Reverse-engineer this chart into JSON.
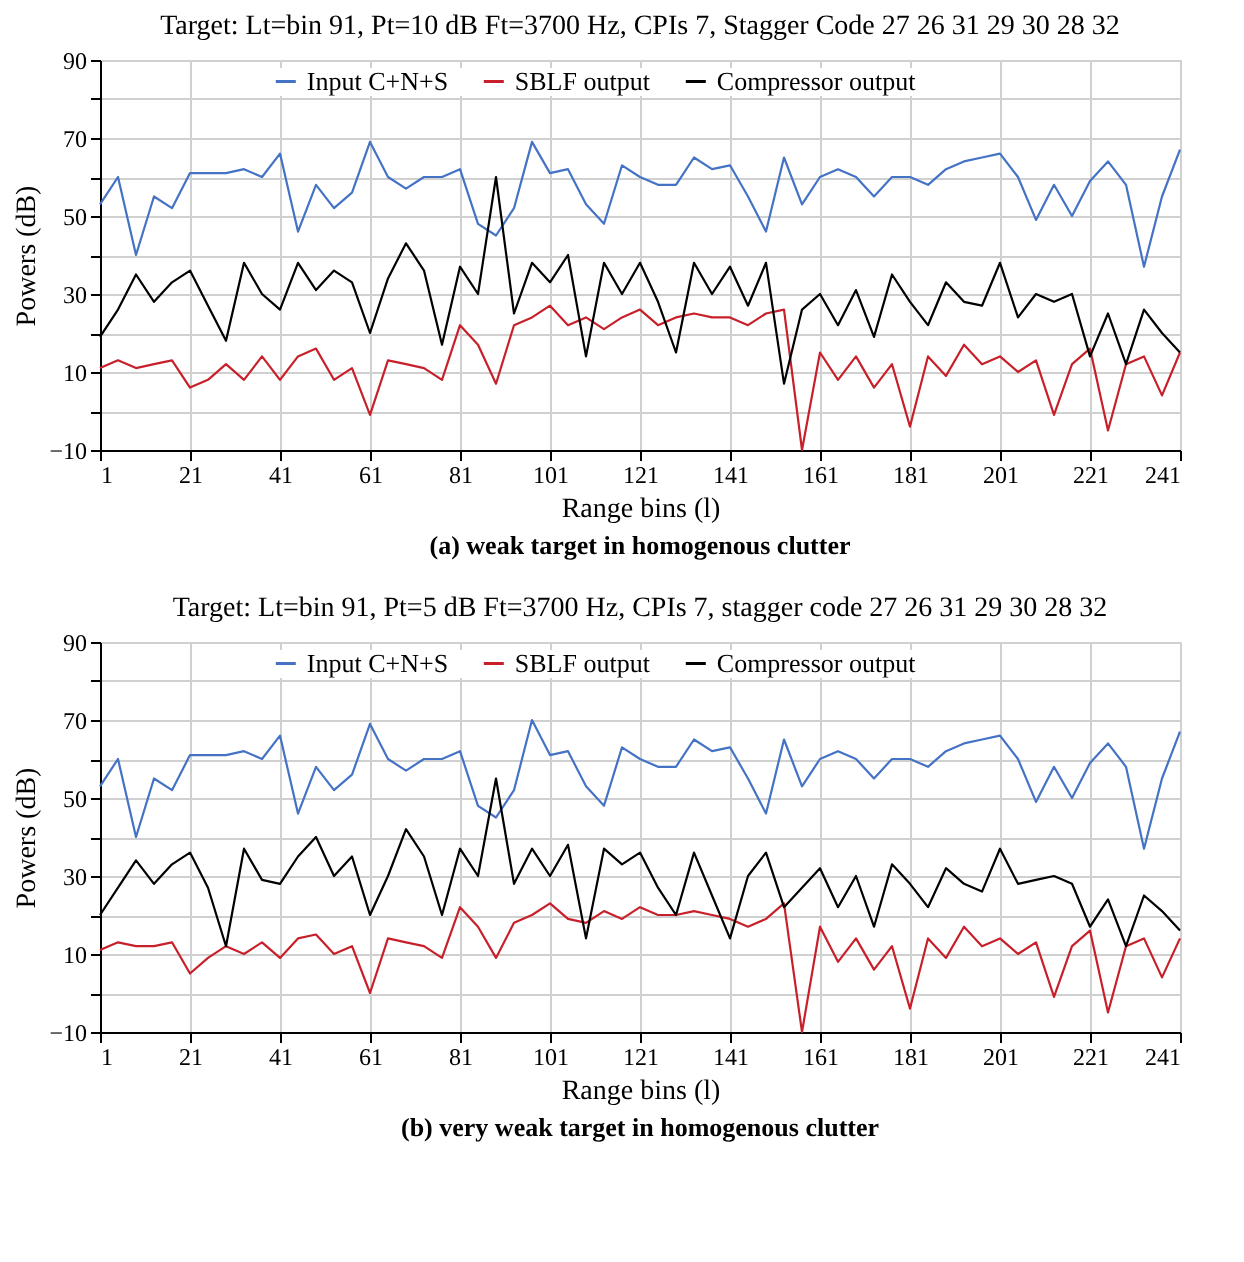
{
  "chart_data": [
    {
      "type": "line",
      "title": "Target: Lt=bin 91, Pt=10 dB Ft=3700 Hz, CPIs 7, Stagger Code 27 26 31 29 30 28 32",
      "xlabel": "Range bins (l)",
      "ylabel": "Powers (dB)",
      "annotations": [
        "(a) weak target in homogenous clutter"
      ],
      "x": [
        1,
        5,
        9,
        13,
        17,
        21,
        25,
        29,
        33,
        37,
        41,
        45,
        49,
        53,
        57,
        61,
        65,
        69,
        73,
        77,
        81,
        85,
        89,
        93,
        97,
        101,
        105,
        109,
        113,
        117,
        121,
        125,
        129,
        133,
        137,
        141,
        145,
        149,
        153,
        157,
        161,
        165,
        169,
        173,
        177,
        181,
        185,
        189,
        193,
        197,
        201,
        205,
        209,
        213,
        217,
        221,
        225,
        229,
        233,
        237,
        241
      ],
      "xlim": [
        1,
        241
      ],
      "xticks": [
        1,
        21,
        41,
        61,
        81,
        101,
        121,
        141,
        161,
        181,
        201,
        221,
        241
      ],
      "ylim": [
        -10,
        90
      ],
      "yticks": [
        -10,
        {
          "value": 0,
          "label": null
        },
        10,
        {
          "value": 20,
          "label": null
        },
        30,
        {
          "value": 40,
          "label": null
        },
        50,
        {
          "value": 60,
          "label": null
        },
        70,
        {
          "value": 80,
          "label": null
        },
        90
      ],
      "grid": true,
      "legend": "top",
      "line_style": "solid",
      "marker": "none",
      "series": [
        {
          "name": "Input C+N+S",
          "color": "#4472c4",
          "values": [
            53,
            60,
            40,
            55,
            52,
            61,
            61,
            61,
            62,
            60,
            66,
            46,
            58,
            52,
            56,
            69,
            60,
            57,
            60,
            60,
            62,
            48,
            45,
            52,
            69,
            61,
            62,
            53,
            48,
            63,
            60,
            58,
            58,
            65,
            62,
            63,
            55,
            46,
            65,
            53,
            60,
            62,
            60,
            55,
            60,
            60,
            58,
            62,
            64,
            65,
            66,
            60,
            49,
            58,
            50,
            59,
            64,
            58,
            37,
            55,
            67
          ]
        },
        {
          "name": "SBLF output",
          "color": "#c8202a",
          "values": [
            11,
            13,
            11,
            12,
            13,
            6,
            8,
            12,
            8,
            14,
            8,
            14,
            16,
            8,
            11,
            -1,
            13,
            12,
            11,
            8,
            22,
            17,
            7,
            22,
            24,
            27,
            22,
            24,
            21,
            24,
            26,
            22,
            24,
            25,
            24,
            24,
            22,
            25,
            26,
            -10,
            15,
            8,
            14,
            6,
            12,
            -4,
            14,
            9,
            17,
            12,
            14,
            10,
            13,
            -1,
            12,
            16,
            -5,
            12,
            14,
            4,
            15
          ]
        },
        {
          "name": "Compressor output",
          "color": "#000000",
          "values": [
            19,
            26,
            35,
            28,
            33,
            36,
            27,
            18,
            38,
            30,
            26,
            38,
            31,
            36,
            33,
            20,
            34,
            43,
            36,
            17,
            37,
            30,
            60,
            25,
            38,
            33,
            40,
            14,
            38,
            30,
            38,
            28,
            15,
            38,
            30,
            37,
            27,
            38,
            7,
            26,
            30,
            22,
            31,
            19,
            35,
            28,
            22,
            33,
            28,
            27,
            38,
            24,
            30,
            28,
            30,
            14,
            25,
            12,
            26,
            20,
            15
          ]
        }
      ]
    },
    {
      "type": "line",
      "title": "Target: Lt=bin 91, Pt=5 dB Ft=3700 Hz, CPIs 7, stagger code 27 26 31 29 30 28 32",
      "xlabel": "Range bins (l)",
      "ylabel": "Powers (dB)",
      "annotations": [
        "(b) very weak target in homogenous clutter"
      ],
      "x": [
        1,
        5,
        9,
        13,
        17,
        21,
        25,
        29,
        33,
        37,
        41,
        45,
        49,
        53,
        57,
        61,
        65,
        69,
        73,
        77,
        81,
        85,
        89,
        93,
        97,
        101,
        105,
        109,
        113,
        117,
        121,
        125,
        129,
        133,
        137,
        141,
        145,
        149,
        153,
        157,
        161,
        165,
        169,
        173,
        177,
        181,
        185,
        189,
        193,
        197,
        201,
        205,
        209,
        213,
        217,
        221,
        225,
        229,
        233,
        237,
        241
      ],
      "xlim": [
        1,
        241
      ],
      "xticks": [
        1,
        21,
        41,
        61,
        81,
        101,
        121,
        141,
        161,
        181,
        201,
        221,
        241
      ],
      "ylim": [
        -10,
        90
      ],
      "yticks": [
        -10,
        {
          "value": 0,
          "label": null
        },
        10,
        {
          "value": 20,
          "label": null
        },
        30,
        {
          "value": 40,
          "label": null
        },
        50,
        {
          "value": 60,
          "label": null
        },
        70,
        {
          "value": 80,
          "label": null
        },
        90
      ],
      "grid": true,
      "legend": "top",
      "line_style": "solid",
      "marker": "none",
      "series": [
        {
          "name": "Input C+N+S",
          "color": "#4472c4",
          "values": [
            53,
            60,
            40,
            55,
            52,
            61,
            61,
            61,
            62,
            60,
            66,
            46,
            58,
            52,
            56,
            69,
            60,
            57,
            60,
            60,
            62,
            48,
            45,
            52,
            70,
            61,
            62,
            53,
            48,
            63,
            60,
            58,
            58,
            65,
            62,
            63,
            55,
            46,
            65,
            53,
            60,
            62,
            60,
            55,
            60,
            60,
            58,
            62,
            64,
            65,
            66,
            60,
            49,
            58,
            50,
            59,
            64,
            58,
            37,
            55,
            67
          ]
        },
        {
          "name": "SBLF output",
          "color": "#c8202a",
          "values": [
            11,
            13,
            12,
            12,
            13,
            5,
            9,
            12,
            10,
            13,
            9,
            14,
            15,
            10,
            12,
            0,
            14,
            13,
            12,
            9,
            22,
            17,
            9,
            18,
            20,
            23,
            19,
            18,
            21,
            19,
            22,
            20,
            20,
            21,
            20,
            19,
            17,
            19,
            23,
            -10,
            17,
            8,
            14,
            6,
            12,
            -4,
            14,
            9,
            17,
            12,
            14,
            10,
            13,
            -1,
            12,
            16,
            -5,
            12,
            14,
            4,
            14
          ]
        },
        {
          "name": "Compressor output",
          "color": "#000000",
          "values": [
            20,
            27,
            34,
            28,
            33,
            36,
            27,
            12,
            37,
            29,
            28,
            35,
            40,
            30,
            35,
            20,
            30,
            42,
            35,
            20,
            37,
            30,
            55,
            28,
            37,
            30,
            38,
            14,
            37,
            33,
            36,
            27,
            20,
            36,
            25,
            14,
            30,
            36,
            22,
            27,
            32,
            22,
            30,
            17,
            33,
            28,
            22,
            32,
            28,
            26,
            37,
            28,
            29,
            30,
            28,
            17,
            24,
            12,
            25,
            21,
            16
          ]
        }
      ]
    }
  ]
}
